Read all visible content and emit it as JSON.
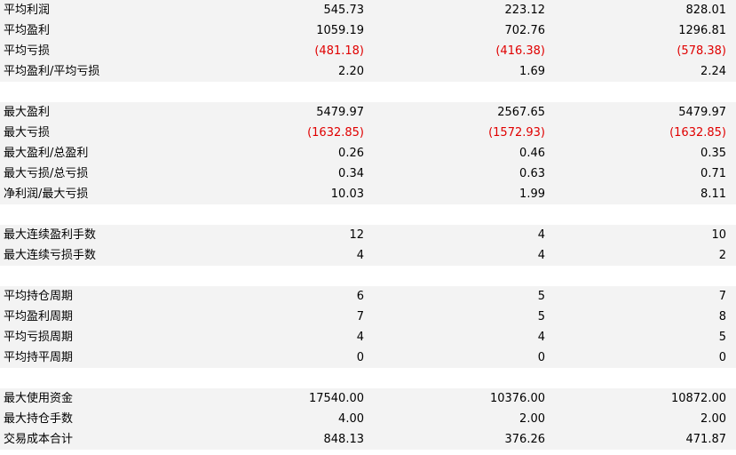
{
  "colors": {
    "row_shade": "#f3f3f3",
    "negative": "#e00000",
    "text": "#000000"
  },
  "groups": [
    {
      "rows": [
        {
          "label": "平均利润",
          "values": [
            "545.73",
            "223.12",
            "828.01"
          ],
          "negative": false
        },
        {
          "label": "平均盈利",
          "values": [
            "1059.19",
            "702.76",
            "1296.81"
          ],
          "negative": false
        },
        {
          "label": "平均亏损",
          "values": [
            "(481.18)",
            "(416.38)",
            "(578.38)"
          ],
          "negative": true
        },
        {
          "label": "平均盈利/平均亏损",
          "values": [
            "2.20",
            "1.69",
            "2.24"
          ],
          "negative": false
        }
      ]
    },
    {
      "rows": [
        {
          "label": "最大盈利",
          "values": [
            "5479.97",
            "2567.65",
            "5479.97"
          ],
          "negative": false
        },
        {
          "label": "最大亏损",
          "values": [
            "(1632.85)",
            "(1572.93)",
            "(1632.85)"
          ],
          "negative": true
        },
        {
          "label": "最大盈利/总盈利",
          "values": [
            "0.26",
            "0.46",
            "0.35"
          ],
          "negative": false
        },
        {
          "label": "最大亏损/总亏损",
          "values": [
            "0.34",
            "0.63",
            "0.71"
          ],
          "negative": false
        },
        {
          "label": "净利润/最大亏损",
          "values": [
            "10.03",
            "1.99",
            "8.11"
          ],
          "negative": false
        }
      ]
    },
    {
      "rows": [
        {
          "label": "最大连续盈利手数",
          "values": [
            "12",
            "4",
            "10"
          ],
          "negative": false
        },
        {
          "label": "最大连续亏损手数",
          "values": [
            "4",
            "4",
            "2"
          ],
          "negative": false
        }
      ]
    },
    {
      "rows": [
        {
          "label": "平均持仓周期",
          "values": [
            "6",
            "5",
            "7"
          ],
          "negative": false
        },
        {
          "label": "平均盈利周期",
          "values": [
            "7",
            "5",
            "8"
          ],
          "negative": false
        },
        {
          "label": "平均亏损周期",
          "values": [
            "4",
            "4",
            "5"
          ],
          "negative": false
        },
        {
          "label": "平均持平周期",
          "values": [
            "0",
            "0",
            "0"
          ],
          "negative": false
        }
      ]
    },
    {
      "rows": [
        {
          "label": "最大使用资金",
          "values": [
            "17540.00",
            "10376.00",
            "10872.00"
          ],
          "negative": false
        },
        {
          "label": "最大持仓手数",
          "values": [
            "4.00",
            "2.00",
            "2.00"
          ],
          "negative": false
        },
        {
          "label": "交易成本合计",
          "values": [
            "848.13",
            "376.26",
            "471.87"
          ],
          "negative": false
        }
      ]
    }
  ]
}
